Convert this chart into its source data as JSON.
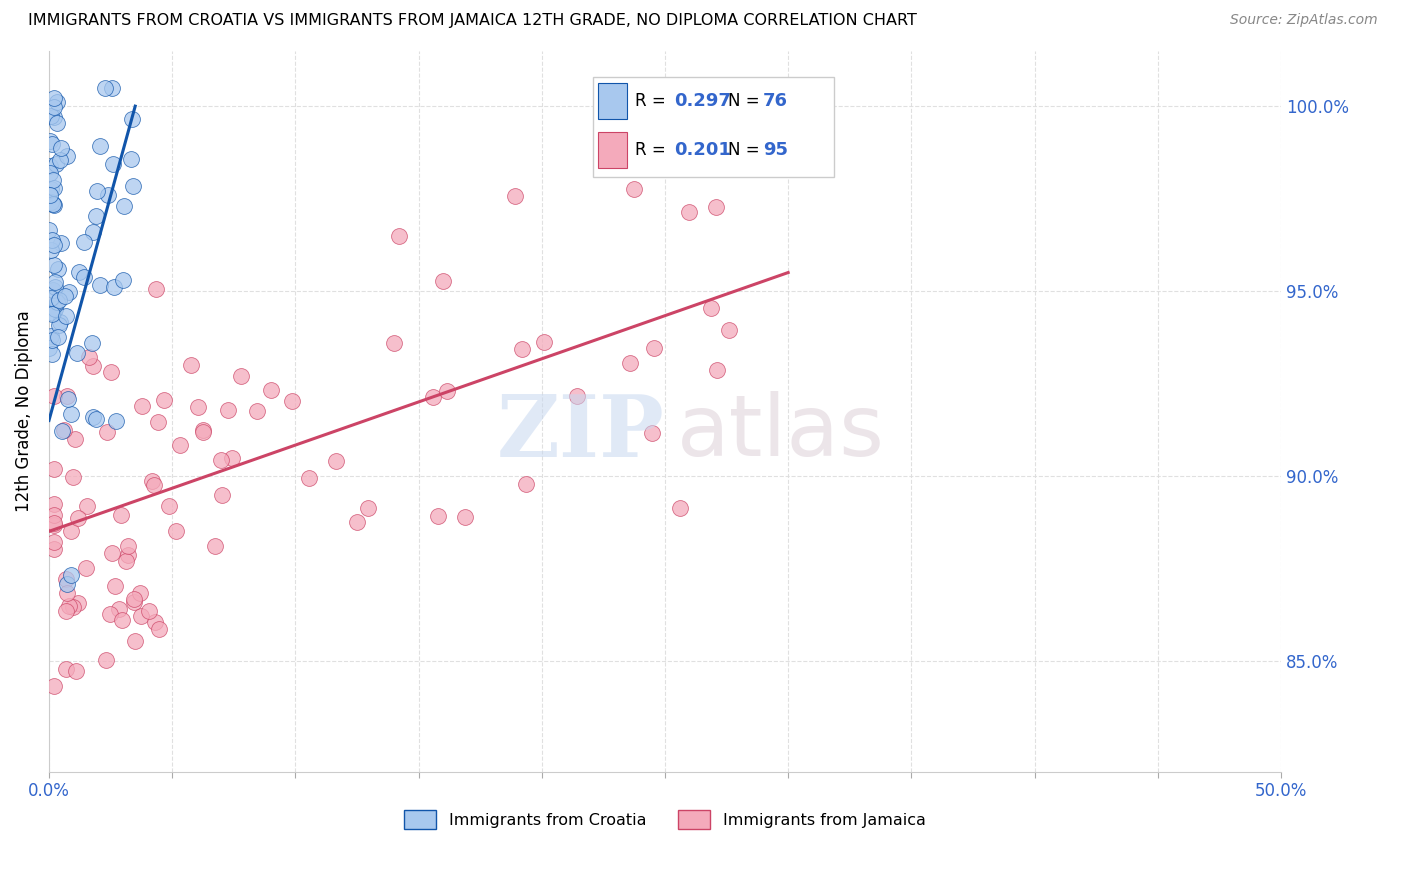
{
  "title": "IMMIGRANTS FROM CROATIA VS IMMIGRANTS FROM JAMAICA 12TH GRADE, NO DIPLOMA CORRELATION CHART",
  "source": "Source: ZipAtlas.com",
  "ylabel": "12th Grade, No Diploma",
  "croatia_color": "#A8C8EE",
  "jamaica_color": "#F4AABB",
  "croatia_line_color": "#1155AA",
  "jamaica_line_color": "#CC4466",
  "croatia_R": 0.297,
  "croatia_N": 76,
  "jamaica_R": 0.201,
  "jamaica_N": 95,
  "xlim": [
    0.0,
    50.0
  ],
  "ylim": [
    82.0,
    101.5
  ],
  "y_ticks": [
    85.0,
    90.0,
    95.0,
    100.0
  ],
  "tick_color": "#3366CC",
  "legend_croatia": "Immigrants from Croatia",
  "legend_jamaica": "Immigrants from Jamaica"
}
